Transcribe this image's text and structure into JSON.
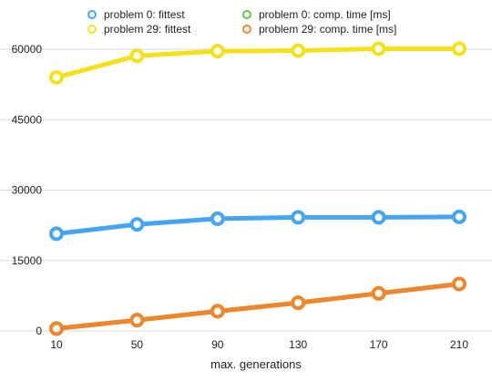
{
  "chart_data": {
    "type": "line",
    "title": "",
    "xlabel": "max. generations",
    "ylabel": "",
    "x": [
      10,
      50,
      90,
      130,
      170,
      210
    ],
    "xlim": [
      10,
      210
    ],
    "ylim": [
      0,
      60000
    ],
    "xticks": [
      "10",
      "50",
      "90",
      "130",
      "170",
      "210"
    ],
    "yticks": [
      "0",
      "15000",
      "30000",
      "45000",
      "60000"
    ],
    "grid": true,
    "legend_position": "top",
    "series": [
      {
        "name": "problem 0: fittest",
        "color": "#45a5f0",
        "values": [
          20700,
          22700,
          23900,
          24200,
          24200,
          24300
        ]
      },
      {
        "name": "problem 29: fittest",
        "color": "#f4e11c",
        "values": [
          54000,
          58600,
          59600,
          59700,
          60100,
          60100
        ]
      },
      {
        "name": "problem 0: comp. time [ms]",
        "color": "#62c63c",
        "values": [
          500,
          2300,
          4200,
          6000,
          8000,
          10000
        ]
      },
      {
        "name": "problem 29: comp. time [ms]",
        "color": "#f0862c",
        "values": [
          500,
          2300,
          4200,
          6000,
          8000,
          10000
        ]
      }
    ]
  }
}
